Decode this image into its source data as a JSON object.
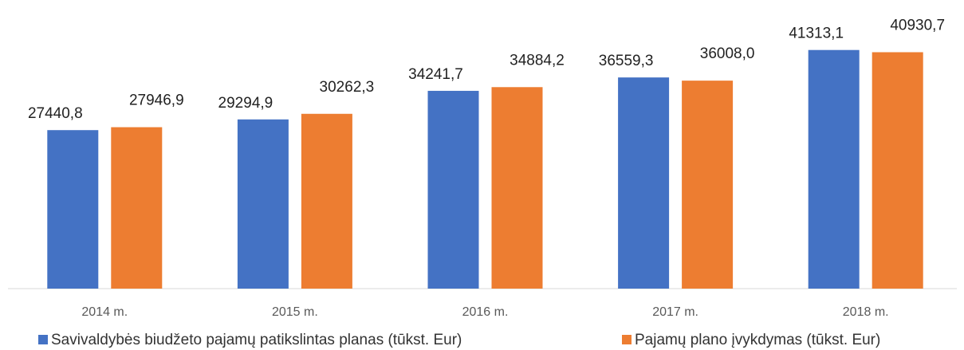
{
  "chart_data": {
    "type": "bar",
    "categories": [
      "2014 m.",
      "2015 m.",
      "2016 m.",
      "2017 m.",
      "2018 m."
    ],
    "series": [
      {
        "name": "Savivaldybės biudžeto pajamų patikslintas planas (tūkst. Eur)",
        "color": "#4472c4",
        "values": [
          27440.8,
          29294.9,
          34241.7,
          36559.3,
          41313.1
        ],
        "value_labels": [
          "27440,8",
          "29294,9",
          "34241,7",
          "36559,3",
          "41313,1"
        ]
      },
      {
        "name": "Pajamų plano įvykdymas (tūkst. Eur)",
        "color": "#ed7d31",
        "values": [
          27946.9,
          30262.3,
          34884.2,
          36008.0,
          40930.7
        ],
        "value_labels": [
          "27946,9",
          "30262,3",
          "34884,2",
          "36008,0",
          "40930,7"
        ]
      }
    ],
    "ylim": [
      0,
      45000
    ],
    "legend": "bottom"
  }
}
